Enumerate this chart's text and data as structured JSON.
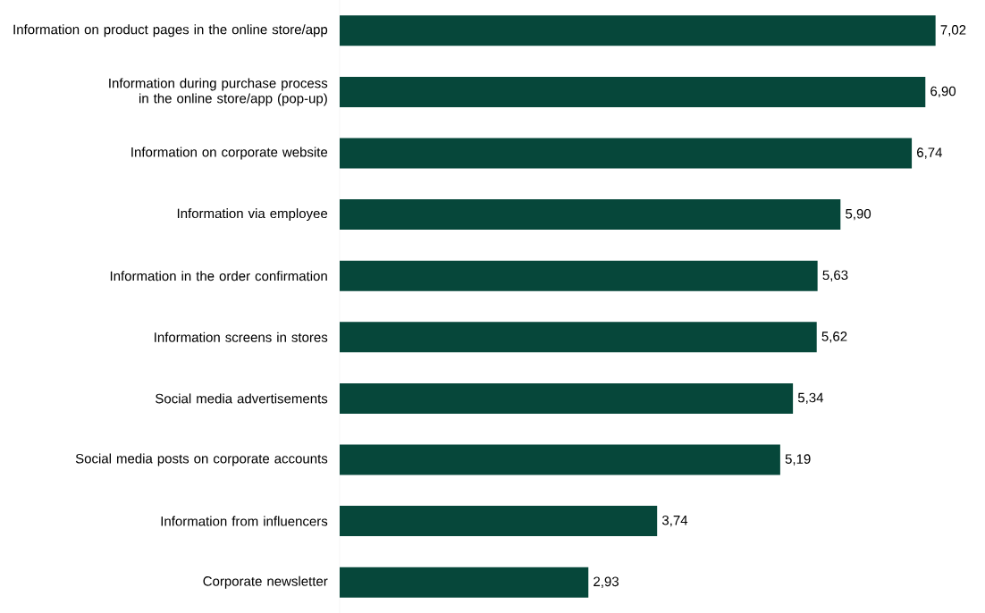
{
  "chart_data": {
    "type": "bar",
    "orientation": "horizontal",
    "color": "#06473a",
    "categories": [
      "Information on product pages in the online store/app",
      "Information during purchase process in the online store/app (pop-up)",
      "Information on corporate website",
      "Information via employee",
      "Information in the order confirmation",
      "Information screens in stores",
      "Social media advertisements",
      "Social media posts on corporate accounts",
      "Information from influencers",
      "Corporate newsletter"
    ],
    "values": [
      7.02,
      6.9,
      6.74,
      5.9,
      5.63,
      5.62,
      5.34,
      5.19,
      3.74,
      2.93
    ],
    "value_labels": [
      "7,02",
      "6,90",
      "6,74",
      "5,90",
      "5,63",
      "5,62",
      "5,34",
      "5,19",
      "3,74",
      "2,93"
    ]
  }
}
